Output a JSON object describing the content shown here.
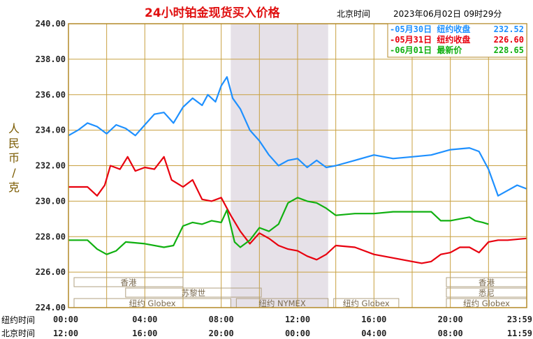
{
  "header": {
    "title": "24小时铂金现货买入价格",
    "zone_label": "北京时间",
    "timestamp": "2023年06月02日 09时29分"
  },
  "y_axis_label": "人民币/克",
  "row_labels": {
    "new_york": "纽约时间",
    "beijing": "北京时间"
  },
  "markets": [
    {
      "name": "香港",
      "start": 0.0,
      "end": 6.0,
      "row": 0
    },
    {
      "name": "香港",
      "start": 19.5,
      "end": 24.0,
      "row": 0
    },
    {
      "name": "苏黎世",
      "start": 2.7,
      "end": 10.1,
      "row": 1
    },
    {
      "name": "悉尼",
      "start": 19.5,
      "end": 24.0,
      "row": 1
    },
    {
      "name": "纽约 Globex",
      "start": 0.0,
      "end": 8.5,
      "row": 2
    },
    {
      "name": "纽约 NYMEX",
      "start": 8.5,
      "end": 13.6,
      "row": 2
    },
    {
      "name": "纽约 Globex",
      "start": 13.6,
      "end": 17.3,
      "row": 2
    },
    {
      "name": "纽约 Globex",
      "start": 19.5,
      "end": 24.0,
      "row": 2
    }
  ],
  "colors": {
    "blue": "#1e90ff",
    "red": "#e8000e",
    "green": "#10b010",
    "grid": "#c8a040",
    "shade": "#e6e1e8"
  },
  "chart_data": {
    "type": "line",
    "x_unit": "hours (New York time)",
    "x_ticks_newyork": [
      "00:00",
      "04:00",
      "08:00",
      "12:00",
      "16:00",
      "20:00",
      "23:59"
    ],
    "x_ticks_beijing": [
      "12:00",
      "16:00",
      "20:00",
      "00:00",
      "04:00",
      "08:00",
      "11:59"
    ],
    "xlim": [
      0,
      24
    ],
    "ylim": [
      224,
      240
    ],
    "y_ticks": [
      "224.00",
      "226.00",
      "228.00",
      "230.00",
      "232.00",
      "234.00",
      "236.00",
      "238.00",
      "240.00"
    ],
    "shaded_range": [
      8.5,
      13.6
    ],
    "legend_position": "top-right",
    "series": [
      {
        "name": "05月30日",
        "legend_text": "纽约收盘",
        "legend_value": "232.52",
        "color": "#1e90ff",
        "points": [
          [
            0,
            233.7
          ],
          [
            0.5,
            234.0
          ],
          [
            1,
            234.4
          ],
          [
            1.5,
            234.2
          ],
          [
            2,
            233.8
          ],
          [
            2.5,
            234.3
          ],
          [
            3,
            234.1
          ],
          [
            3.5,
            233.7
          ],
          [
            4,
            234.3
          ],
          [
            4.5,
            234.9
          ],
          [
            5,
            235.0
          ],
          [
            5.5,
            234.4
          ],
          [
            6,
            235.3
          ],
          [
            6.5,
            235.8
          ],
          [
            7,
            235.4
          ],
          [
            7.3,
            236.0
          ],
          [
            7.7,
            235.6
          ],
          [
            8.0,
            236.5
          ],
          [
            8.3,
            237.0
          ],
          [
            8.6,
            235.8
          ],
          [
            9.0,
            235.2
          ],
          [
            9.5,
            234.0
          ],
          [
            10,
            233.4
          ],
          [
            10.5,
            232.6
          ],
          [
            11,
            232.0
          ],
          [
            11.5,
            232.3
          ],
          [
            12,
            232.4
          ],
          [
            12.5,
            231.9
          ],
          [
            13,
            232.3
          ],
          [
            13.5,
            231.9
          ],
          [
            14,
            232.0
          ],
          [
            15,
            232.3
          ],
          [
            16,
            232.6
          ],
          [
            17,
            232.4
          ],
          [
            18,
            232.5
          ],
          [
            19,
            232.6
          ],
          [
            20,
            232.9
          ],
          [
            21,
            233.0
          ],
          [
            21.5,
            232.8
          ],
          [
            22,
            231.8
          ],
          [
            22.5,
            230.3
          ],
          [
            23,
            230.6
          ],
          [
            23.5,
            230.9
          ],
          [
            23.99,
            230.7
          ]
        ]
      },
      {
        "name": "05月31日",
        "legend_text": "纽约收盘",
        "legend_value": "226.60",
        "color": "#e8000e",
        "points": [
          [
            0,
            230.8
          ],
          [
            1,
            230.8
          ],
          [
            1.5,
            230.3
          ],
          [
            1.9,
            230.9
          ],
          [
            2.2,
            232.0
          ],
          [
            2.7,
            231.8
          ],
          [
            3.1,
            232.5
          ],
          [
            3.5,
            231.7
          ],
          [
            4,
            231.9
          ],
          [
            4.5,
            231.8
          ],
          [
            5,
            232.5
          ],
          [
            5.4,
            231.2
          ],
          [
            6,
            230.8
          ],
          [
            6.5,
            231.2
          ],
          [
            7,
            230.1
          ],
          [
            7.5,
            230.0
          ],
          [
            8,
            230.2
          ],
          [
            8.5,
            229.2
          ],
          [
            9,
            228.3
          ],
          [
            9.5,
            227.6
          ],
          [
            10,
            228.2
          ],
          [
            10.5,
            227.9
          ],
          [
            11,
            227.5
          ],
          [
            11.5,
            227.3
          ],
          [
            12,
            227.2
          ],
          [
            12.5,
            226.9
          ],
          [
            13,
            226.7
          ],
          [
            13.5,
            227.0
          ],
          [
            14,
            227.5
          ],
          [
            15,
            227.4
          ],
          [
            16,
            227.0
          ],
          [
            17,
            226.8
          ],
          [
            18,
            226.6
          ],
          [
            18.5,
            226.5
          ],
          [
            19,
            226.6
          ],
          [
            19.5,
            227.0
          ],
          [
            20,
            227.1
          ],
          [
            20.5,
            227.4
          ],
          [
            21,
            227.4
          ],
          [
            21.5,
            227.1
          ],
          [
            22,
            227.7
          ],
          [
            22.5,
            227.8
          ],
          [
            23,
            227.8
          ],
          [
            23.99,
            227.9
          ]
        ]
      },
      {
        "name": "06月01日",
        "legend_text": "最新价",
        "legend_value": "228.65",
        "color": "#10b010",
        "points": [
          [
            0,
            227.8
          ],
          [
            1,
            227.8
          ],
          [
            1.5,
            227.3
          ],
          [
            2,
            227.0
          ],
          [
            2.5,
            227.2
          ],
          [
            3,
            227.7
          ],
          [
            4,
            227.6
          ],
          [
            5,
            227.4
          ],
          [
            5.5,
            227.5
          ],
          [
            6,
            228.6
          ],
          [
            6.5,
            228.8
          ],
          [
            7,
            228.7
          ],
          [
            7.5,
            228.9
          ],
          [
            8,
            228.8
          ],
          [
            8.3,
            229.5
          ],
          [
            8.7,
            227.7
          ],
          [
            9,
            227.4
          ],
          [
            9.5,
            227.8
          ],
          [
            10,
            228.5
          ],
          [
            10.5,
            228.3
          ],
          [
            11,
            228.7
          ],
          [
            11.5,
            229.9
          ],
          [
            12,
            230.2
          ],
          [
            12.5,
            230.0
          ],
          [
            13,
            229.9
          ],
          [
            13.5,
            229.6
          ],
          [
            14,
            229.2
          ],
          [
            15,
            229.3
          ],
          [
            16,
            229.3
          ],
          [
            17,
            229.4
          ],
          [
            18,
            229.4
          ],
          [
            19,
            229.4
          ],
          [
            19.5,
            228.9
          ],
          [
            20,
            228.9
          ],
          [
            20.5,
            229.0
          ],
          [
            21,
            229.1
          ],
          [
            21.3,
            228.9
          ],
          [
            21.7,
            228.8
          ],
          [
            22,
            228.7
          ]
        ]
      }
    ]
  }
}
